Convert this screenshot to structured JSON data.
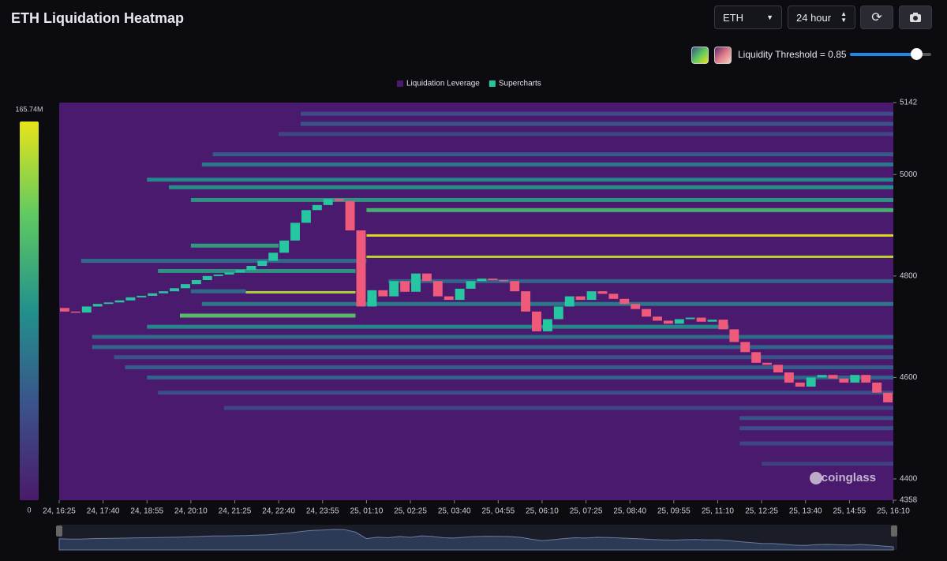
{
  "header": {
    "title": "ETH Liquidation Heatmap",
    "symbol": "ETH",
    "range": "24 hour",
    "threshold_label": "Liquidity Threshold = 0.85"
  },
  "chart_data": {
    "type": "heatmap",
    "watermark": "coinglass",
    "ylim": [
      4358,
      5142
    ],
    "yticks": [
      4358,
      4400,
      4600,
      4800,
      5000,
      5142
    ],
    "clim": [
      0,
      165.74
    ],
    "cticks": [
      0,
      {
        "value": 165.74,
        "label": "165.74M"
      }
    ],
    "colormap": [
      "#4a1a6b",
      "#3b528b",
      "#21918c",
      "#5ec962",
      "#e7e419"
    ],
    "background": "#4a1a6e",
    "categories": [
      "24, 16:25",
      null,
      null,
      null,
      "24, 17:40",
      null,
      null,
      null,
      "24, 18:55",
      null,
      null,
      null,
      "24, 20:10",
      null,
      null,
      null,
      "24, 21:25",
      null,
      null,
      null,
      "24, 22:40",
      null,
      null,
      null,
      "24, 23:55",
      null,
      null,
      null,
      "25, 01:10",
      null,
      null,
      null,
      "25, 02:25",
      null,
      null,
      null,
      "25, 03:40",
      null,
      null,
      null,
      "25, 04:55",
      null,
      null,
      null,
      "25, 06:10",
      null,
      null,
      null,
      "25, 07:25",
      null,
      null,
      null,
      "25, 08:40",
      null,
      null,
      null,
      "25, 09:55",
      null,
      null,
      null,
      "25, 11:10",
      null,
      null,
      null,
      "25, 12:25",
      null,
      null,
      null,
      "25, 13:40",
      null,
      null,
      null,
      "25, 14:55",
      null,
      null,
      null,
      "25, 16:10"
    ],
    "heatmap": {
      "name": "Liquidation Leverage",
      "color": "#4a1a6e",
      "levels": [
        {
          "price": 5120,
          "from": 22,
          "to": 76,
          "value": 40
        },
        {
          "price": 5100,
          "from": 22,
          "to": 76,
          "value": 45
        },
        {
          "price": 5080,
          "from": 20,
          "to": 76,
          "value": 35
        },
        {
          "price": 5040,
          "from": 14,
          "to": 76,
          "value": 50
        },
        {
          "price": 5020,
          "from": 13,
          "to": 76,
          "value": 70
        },
        {
          "price": 4990,
          "from": 8,
          "to": 76,
          "value": 80
        },
        {
          "price": 4975,
          "from": 10,
          "to": 76,
          "value": 85
        },
        {
          "price": 4950,
          "from": 12,
          "to": 76,
          "value": 90
        },
        {
          "price": 4930,
          "from": 28,
          "to": 76,
          "value": 110
        },
        {
          "price": 4880,
          "from": 28,
          "to": 76,
          "value": 165
        },
        {
          "price": 4860,
          "from": 12,
          "to": 20,
          "value": 95
        },
        {
          "price": 4838,
          "from": 28,
          "to": 76,
          "value": 155
        },
        {
          "price": 4830,
          "from": 2,
          "to": 28,
          "value": 60
        },
        {
          "price": 4810,
          "from": 9,
          "to": 27,
          "value": 90
        },
        {
          "price": 4790,
          "from": 30,
          "to": 76,
          "value": 55
        },
        {
          "price": 4768,
          "from": 17,
          "to": 27,
          "value": 150
        },
        {
          "price": 4770,
          "from": 12,
          "to": 17,
          "value": 60
        },
        {
          "price": 4745,
          "from": 13,
          "to": 76,
          "value": 70
        },
        {
          "price": 4722,
          "from": 11,
          "to": 27,
          "value": 120
        },
        {
          "price": 4700,
          "from": 8,
          "to": 61,
          "value": 80
        },
        {
          "price": 4680,
          "from": 3,
          "to": 76,
          "value": 60
        },
        {
          "price": 4660,
          "from": 3,
          "to": 76,
          "value": 55
        },
        {
          "price": 4640,
          "from": 5,
          "to": 76,
          "value": 45
        },
        {
          "price": 4620,
          "from": 6,
          "to": 76,
          "value": 50
        },
        {
          "price": 4600,
          "from": 8,
          "to": 76,
          "value": 55
        },
        {
          "price": 4570,
          "from": 9,
          "to": 76,
          "value": 40
        },
        {
          "price": 4540,
          "from": 15,
          "to": 76,
          "value": 35
        },
        {
          "price": 4520,
          "from": 62,
          "to": 76,
          "value": 45
        },
        {
          "price": 4500,
          "from": 62,
          "to": 76,
          "value": 40
        },
        {
          "price": 4470,
          "from": 62,
          "to": 76,
          "value": 35
        },
        {
          "price": 4430,
          "from": 64,
          "to": 76,
          "value": 30
        }
      ]
    },
    "series": [
      {
        "name": "Supercharts",
        "color": "#26c6a0",
        "down_color": "#ef5a7a",
        "values": [
          4737,
          4730,
          4728,
          4740,
          4745,
          4748,
          4752,
          4758,
          4761,
          4766,
          4770,
          4776,
          4784,
          4792,
          4800,
          4803,
          4807,
          4812,
          4820,
          4830,
          4846,
          4870,
          4905,
          4930,
          4940,
          4952,
          4948,
          4890,
          4740,
          4772,
          4760,
          4790,
          4769,
          4805,
          4790,
          4760,
          4753,
          4775,
          4790,
          4795,
          4792,
          4790,
          4770,
          4730,
          4691,
          4715,
          4740,
          4760,
          4753,
          4770,
          4765,
          4755,
          4745,
          4735,
          4720,
          4712,
          4706,
          4715,
          4718,
          4710,
          4714,
          4695,
          4670,
          4650,
          4629,
          4625,
          4610,
          4590,
          4582,
          4600,
          4605,
          4598,
          4590,
          4605,
          4590,
          4570,
          4551
        ]
      }
    ]
  }
}
